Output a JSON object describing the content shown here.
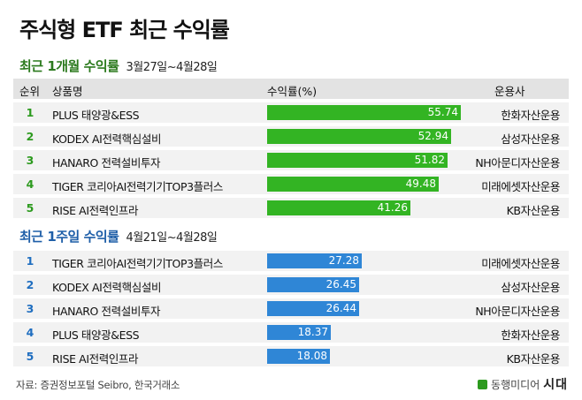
{
  "title": "주식형 ETF 최근 수익률",
  "colors": {
    "green": "#33b423",
    "blue": "#2f86d6"
  },
  "headers": {
    "rank": "순위",
    "name": "상품명",
    "return": "수익률(%)",
    "manager": "운용사"
  },
  "chart_data": [
    {
      "type": "bar",
      "title": "최근 1개월 수익률",
      "period": "3월27일~4월28일",
      "ranks": [
        "1",
        "2",
        "3",
        "4",
        "5"
      ],
      "categories": [
        "PLUS 태양광&ESS",
        "KODEX AI전력핵심설비",
        "HANARO 전력설비투자",
        "TIGER 코리아AI전력기기TOP3플러스",
        "RISE AI전력인프라"
      ],
      "managers": [
        "한화자산운용",
        "삼성자산운용",
        "NH아문디자산운용",
        "미래에셋자산운용",
        "KB자산운용"
      ],
      "values": [
        55.74,
        52.94,
        51.82,
        49.48,
        41.26
      ],
      "labels": [
        "55.74",
        "52.94",
        "51.82",
        "49.48",
        "41.26"
      ],
      "xlim": [
        0,
        56
      ]
    },
    {
      "type": "bar",
      "title": "최근 1주일 수익률",
      "period": "4월21일~4월28일",
      "ranks": [
        "1",
        "2",
        "3",
        "4",
        "5"
      ],
      "categories": [
        "TIGER 코리아AI전력기기TOP3플러스",
        "KODEX AI전력핵심설비",
        "HANARO 전력설비투자",
        "PLUS 태양광&ESS",
        "RISE AI전력인프라"
      ],
      "managers": [
        "미래에셋자산운용",
        "삼성자산운용",
        "NH아문디자산운용",
        "한화자산운용",
        "KB자산운용"
      ],
      "values": [
        27.28,
        26.45,
        26.44,
        18.37,
        18.08
      ],
      "labels": [
        "27.28",
        "26.45",
        "26.44",
        "18.37",
        "18.08"
      ],
      "xlim": [
        0,
        56
      ]
    }
  ],
  "footer": "자료: 증권정보포털 Seibro, 한국거래소",
  "brand": {
    "prefix": "동행미디어",
    "suffix": "시대"
  }
}
